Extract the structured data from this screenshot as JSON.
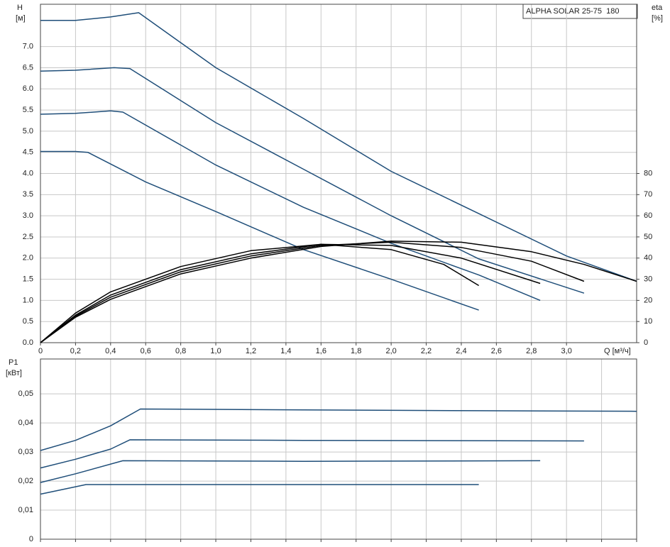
{
  "chart_data": [
    {
      "type": "line",
      "title": "ALPHA SOLAR 25-75  180",
      "ylabel": "H",
      "yunit": "[м]",
      "y2label": "eta",
      "y2unit": "[%]",
      "xlabel": "Q [м³/ч]",
      "xlim": [
        0,
        3.4
      ],
      "xticks": [
        0,
        {
          "value": 0.2,
          "label": "0,2"
        },
        {
          "value": 0.4,
          "label": "0,4"
        },
        {
          "value": 0.6,
          "label": "0,6"
        },
        {
          "value": 0.8,
          "label": "0,8"
        },
        {
          "value": 1.0,
          "label": "1,0"
        },
        {
          "value": 1.2,
          "label": "1,2"
        },
        {
          "value": 1.4,
          "label": "1,4"
        },
        {
          "value": 1.6,
          "label": "1,6"
        },
        {
          "value": 1.8,
          "label": "1,8"
        },
        {
          "value": 2.0,
          "label": "2,0"
        },
        {
          "value": 2.2,
          "label": "2,2"
        },
        {
          "value": 2.4,
          "label": "2,4"
        },
        {
          "value": 2.6,
          "label": "2,6"
        },
        {
          "value": 2.8,
          "label": "2,8"
        },
        {
          "value": 3.0,
          "label": "3,0"
        }
      ],
      "ylim": [
        0,
        8
      ],
      "yticks": [
        {
          "value": 0,
          "label": "0.0"
        },
        {
          "value": 0.5,
          "label": "0.5"
        },
        {
          "value": 1,
          "label": "1.0"
        },
        {
          "value": 1.5,
          "label": "1.5"
        },
        {
          "value": 2,
          "label": "2.0"
        },
        {
          "value": 2.5,
          "label": "2.5"
        },
        {
          "value": 3,
          "label": "3.0"
        },
        {
          "value": 3.5,
          "label": "3.5"
        },
        {
          "value": 4,
          "label": "4.0"
        },
        {
          "value": 4.5,
          "label": "4.5"
        },
        {
          "value": 5,
          "label": "5.0"
        },
        {
          "value": 5.5,
          "label": "5.5"
        },
        {
          "value": 6,
          "label": "6.0"
        },
        {
          "value": 6.5,
          "label": "6.5"
        },
        {
          "value": 7,
          "label": "7.0"
        }
      ],
      "y2lim": [
        0,
        160
      ],
      "y2ticks": [
        0,
        10,
        20,
        30,
        40,
        50,
        60,
        70,
        80
      ],
      "grid": true,
      "series": [
        {
          "color": "#1f4e79",
          "x": [
            0,
            0.2,
            0.4,
            0.56,
            1.0,
            1.5,
            2.0,
            2.5,
            3.0,
            3.4
          ],
          "values": [
            7.62,
            7.62,
            7.7,
            7.8,
            6.5,
            5.3,
            4.05,
            3.05,
            2.05,
            1.45
          ]
        },
        {
          "color": "#1f4e79",
          "x": [
            0,
            0.2,
            0.42,
            0.51,
            1.0,
            1.5,
            2.0,
            2.5,
            3.1
          ],
          "values": [
            6.42,
            6.44,
            6.5,
            6.48,
            5.2,
            4.1,
            3.0,
            1.98,
            1.17
          ]
        },
        {
          "color": "#1f4e79",
          "x": [
            0,
            0.2,
            0.4,
            0.47,
            1.0,
            1.5,
            2.0,
            2.5,
            2.85
          ],
          "values": [
            5.4,
            5.42,
            5.48,
            5.45,
            4.2,
            3.2,
            2.35,
            1.6,
            1.0
          ]
        },
        {
          "color": "#1f4e79",
          "x": [
            0,
            0.2,
            0.27,
            0.6,
            1.0,
            1.5,
            2.0,
            2.5
          ],
          "values": [
            4.52,
            4.52,
            4.5,
            3.8,
            3.1,
            2.2,
            1.5,
            0.77
          ]
        },
        {
          "color": "#000000",
          "axis": "y2",
          "x": [
            0,
            0.2,
            0.4,
            0.8,
            1.2,
            1.6,
            2.0,
            2.4,
            2.8,
            3.1,
            3.4
          ],
          "values": [
            0,
            12,
            20.5,
            32.5,
            40,
            45.5,
            48,
            47.5,
            43,
            37,
            29
          ]
        },
        {
          "color": "#000000",
          "axis": "y2",
          "x": [
            0,
            0.2,
            0.4,
            0.8,
            1.2,
            1.6,
            2.0,
            2.4,
            2.8,
            3.1
          ],
          "values": [
            0,
            12.5,
            21.5,
            33.5,
            41,
            46,
            47.5,
            45,
            38.5,
            29
          ]
        },
        {
          "color": "#000000",
          "axis": "y2",
          "x": [
            0,
            0.2,
            0.4,
            0.8,
            1.2,
            1.6,
            2.0,
            2.4,
            2.85
          ],
          "values": [
            0,
            13,
            22.5,
            34.5,
            42,
            46.5,
            46,
            40,
            28
          ]
        },
        {
          "color": "#000000",
          "axis": "y2",
          "x": [
            0,
            0.2,
            0.4,
            0.8,
            1.2,
            1.6,
            2.0,
            2.3,
            2.5
          ],
          "values": [
            0,
            14,
            24,
            36,
            43.5,
            46.5,
            44,
            37,
            27
          ]
        }
      ]
    },
    {
      "type": "line",
      "ylabel": "P1",
      "yunit": "[кВт]",
      "xlim": [
        0,
        3.4
      ],
      "xticks": [
        0,
        0.2,
        0.4,
        0.6,
        0.8,
        1.0,
        1.2,
        1.4,
        1.6,
        1.8,
        2.0,
        2.2,
        2.4,
        2.6,
        2.8,
        3.0,
        3.2,
        3.4
      ],
      "ylim": [
        0,
        0.062
      ],
      "yticks": [
        0,
        {
          "value": 0.01,
          "label": "0,01"
        },
        {
          "value": 0.02,
          "label": "0,02"
        },
        {
          "value": 0.03,
          "label": "0,03"
        },
        {
          "value": 0.04,
          "label": "0,04"
        },
        {
          "value": 0.05,
          "label": "0,05"
        }
      ],
      "grid": true,
      "series": [
        {
          "color": "#1f4e79",
          "x": [
            0,
            0.2,
            0.4,
            0.57,
            1.5,
            2.5,
            3.4
          ],
          "values": [
            0.0305,
            0.034,
            0.039,
            0.0448,
            0.0445,
            0.0442,
            0.044
          ]
        },
        {
          "color": "#1f4e79",
          "x": [
            0,
            0.2,
            0.4,
            0.51,
            1.5,
            3.1
          ],
          "values": [
            0.0245,
            0.0275,
            0.031,
            0.0342,
            0.034,
            0.0338
          ]
        },
        {
          "color": "#1f4e79",
          "x": [
            0,
            0.2,
            0.47,
            1.5,
            2.85
          ],
          "values": [
            0.0195,
            0.0225,
            0.027,
            0.0268,
            0.027
          ]
        },
        {
          "color": "#1f4e79",
          "x": [
            0,
            0.26,
            1.5,
            2.5
          ],
          "values": [
            0.0155,
            0.0188,
            0.0188,
            0.0188
          ]
        }
      ]
    }
  ]
}
